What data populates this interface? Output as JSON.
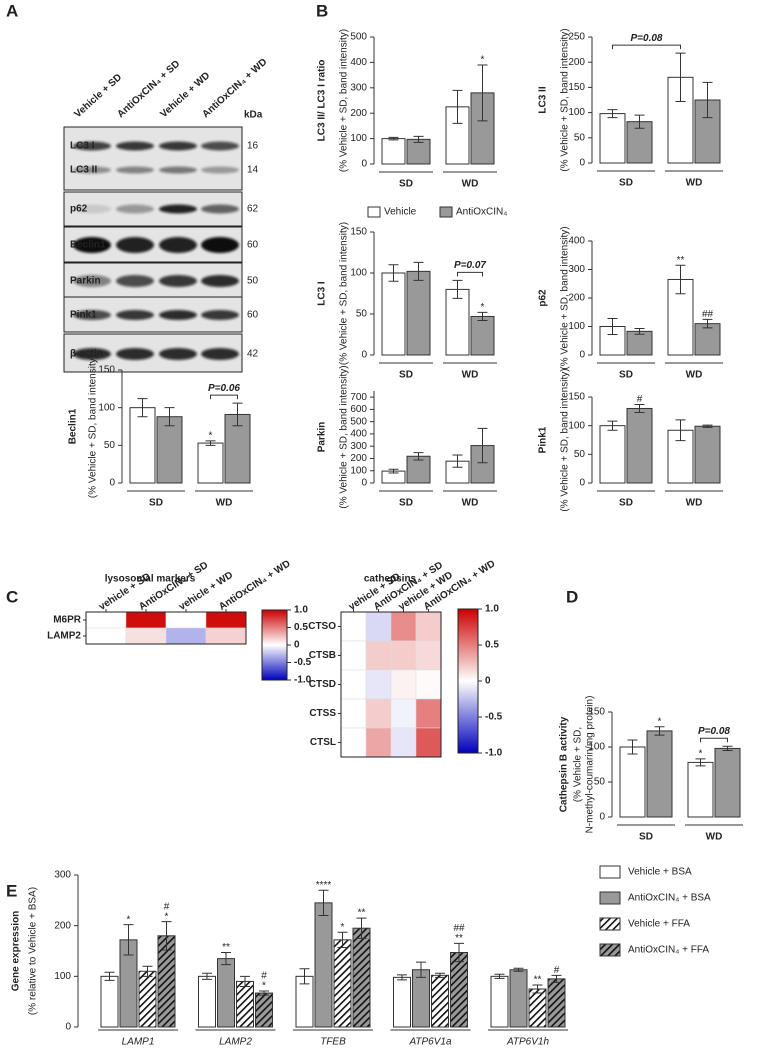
{
  "panel_labels": [
    "A",
    "B",
    "C",
    "D",
    "E"
  ],
  "blot": {
    "lanes": [
      "Vehicle + SD",
      "AntiOxCIN₄ + SD",
      "Vehicle + WD",
      "AntiOxCIN₄ + WD"
    ],
    "unit": "kDa",
    "rows": [
      {
        "name": "LC3 I",
        "kda": 16
      },
      {
        "name": "LC3 II",
        "kda": 14
      },
      {
        "name": "p62",
        "kda": 62
      },
      {
        "name": "Beclin1",
        "kda": 60
      },
      {
        "name": "Parkin",
        "kda": 50
      },
      {
        "name": "Pink1",
        "kda": 60
      },
      {
        "name": "β-actin",
        "kda": 42
      }
    ]
  },
  "chart_data": [
    {
      "type": "bar",
      "ylabel": "LC3 II/ LC3 I ratio",
      "ylabel_sub": [
        "(% Vehicle + SD, band intensity)"
      ],
      "categories": [
        "SD",
        "WD"
      ],
      "series": [
        {
          "color": "#ffffff",
          "values": [
            100,
            225
          ],
          "errors": [
            5,
            65
          ]
        },
        {
          "color": "#999999",
          "values": [
            97,
            280
          ],
          "errors": [
            12,
            110
          ],
          "annotations": [
            null,
            [
              "*"
            ]
          ]
        }
      ],
      "ylim": [
        0,
        500
      ],
      "yticks": [
        0,
        100,
        200,
        300,
        400,
        500
      ]
    },
    {
      "type": "bar",
      "ylabel": "LC3 II",
      "ylabel_sub": [
        "(% Vehicle + SD, band intensity)"
      ],
      "categories": [
        "SD",
        "WD"
      ],
      "series": [
        {
          "color": "#ffffff",
          "values": [
            98,
            170
          ],
          "errors": [
            8,
            48
          ]
        },
        {
          "color": "#999999",
          "values": [
            82,
            125
          ],
          "errors": [
            13,
            35
          ]
        }
      ],
      "ylim": [
        0,
        250
      ],
      "yticks": [
        0,
        50,
        100,
        150,
        200,
        250
      ],
      "bracket_label": "P=0.08"
    },
    {
      "type": "bar",
      "ylabel": "LC3 I",
      "ylabel_sub": [
        "(% Vehicle + SD, band intensity)"
      ],
      "categories": [
        "SD",
        "WD"
      ],
      "legend": true,
      "series": [
        {
          "name": "Vehicle",
          "color": "#ffffff",
          "values": [
            100,
            80
          ],
          "errors": [
            10,
            11
          ]
        },
        {
          "name": "AntiOxCIN₄",
          "color": "#999999",
          "values": [
            102,
            47
          ],
          "errors": [
            11,
            5
          ],
          "annotations": [
            null,
            [
              "*"
            ]
          ]
        }
      ],
      "ylim": [
        0,
        150
      ],
      "yticks": [
        0,
        50,
        100,
        150
      ],
      "bracket_label": "P=0.07"
    },
    {
      "type": "bar",
      "ylabel": "p62",
      "ylabel_sub": [
        "(% Vehicle + SD, band intensity)"
      ],
      "categories": [
        "SD",
        "WD"
      ],
      "series": [
        {
          "color": "#ffffff",
          "values": [
            100,
            265
          ],
          "errors": [
            28,
            50
          ],
          "annotations": [
            null,
            [
              "**"
            ]
          ]
        },
        {
          "color": "#999999",
          "values": [
            83,
            110
          ],
          "errors": [
            10,
            15
          ],
          "annotations": [
            null,
            [
              "##"
            ]
          ]
        }
      ],
      "ylim": [
        0,
        400
      ],
      "yticks": [
        0,
        100,
        200,
        300,
        400
      ]
    },
    {
      "type": "bar",
      "ylabel": "Beclin1",
      "ylabel_sub": [
        "(% Vehicle + SD, band intensity)"
      ],
      "categories": [
        "SD",
        "WD"
      ],
      "series": [
        {
          "color": "#ffffff",
          "values": [
            100,
            53
          ],
          "errors": [
            12,
            3
          ],
          "annotations": [
            null,
            [
              "*"
            ]
          ]
        },
        {
          "color": "#999999",
          "values": [
            88,
            91
          ],
          "errors": [
            12,
            15
          ]
        }
      ],
      "ylim": [
        0,
        150
      ],
      "yticks": [
        0,
        50,
        100,
        150
      ],
      "bracket_label": "P=0.06"
    },
    {
      "type": "bar",
      "ylabel": "Parkin",
      "ylabel_sub": [
        "(% Vehicle + SD, band intensity)"
      ],
      "categories": [
        "SD",
        "WD"
      ],
      "series": [
        {
          "color": "#ffffff",
          "values": [
            97,
            178
          ],
          "errors": [
            15,
            50
          ]
        },
        {
          "color": "#999999",
          "values": [
            218,
            305
          ],
          "errors": [
            30,
            140
          ]
        }
      ],
      "ylim": [
        0,
        750
      ],
      "yticks": [
        0,
        100,
        200,
        300,
        400,
        500,
        600,
        700
      ]
    },
    {
      "type": "bar",
      "ylabel": "Pink1",
      "ylabel_sub": [
        "(% Vehicle + SD, band intensity)"
      ],
      "categories": [
        "SD",
        "WD"
      ],
      "series": [
        {
          "color": "#ffffff",
          "values": [
            100,
            92
          ],
          "errors": [
            8,
            18
          ]
        },
        {
          "color": "#999999",
          "values": [
            130,
            99
          ],
          "errors": [
            7,
            2
          ],
          "annotations": [
            [
              "#"
            ],
            null
          ]
        }
      ],
      "ylim": [
        0,
        150
      ],
      "yticks": [
        0,
        50,
        100,
        150
      ]
    },
    {
      "type": "heatmap",
      "title": "lysosomal markers",
      "columns": [
        "vehicle + SD",
        "AntiOxCIN₄ + SD",
        "vehicle + WD",
        "AntiOxCIN₄ + WD"
      ],
      "rows": [
        "M6PR",
        "LAMP2"
      ],
      "values": [
        [
          0,
          0.95,
          0,
          0.95
        ],
        [
          0,
          0.12,
          -0.3,
          0.18
        ]
      ],
      "zlim": [
        -1,
        1
      ],
      "zticks": [
        {
          "value": 1,
          "label": "1.0"
        },
        0.5,
        0,
        -0.5,
        {
          "value": -1,
          "label": "-1.0"
        }
      ]
    },
    {
      "type": "heatmap",
      "title": "cathepsins",
      "columns": [
        "vehicle + SD",
        "AntiOxCIN₄ + SD",
        "vehicle + WD",
        "AntiOxCIN₄ + WD"
      ],
      "rows": [
        "CTSO",
        "CTSB",
        "CTSD",
        "CTSS",
        "CTSL"
      ],
      "values": [
        [
          0,
          -0.15,
          0.45,
          0.2
        ],
        [
          0,
          0.2,
          0.2,
          0.15
        ],
        [
          0,
          -0.1,
          0.05,
          0.02
        ],
        [
          0,
          0.2,
          -0.05,
          0.5
        ],
        [
          0,
          0.35,
          -0.1,
          0.65
        ]
      ],
      "zlim": [
        -1,
        1
      ],
      "zticks": [
        {
          "value": 1,
          "label": "1.0"
        },
        0.5,
        0,
        -0.5,
        {
          "value": -1,
          "label": "-1.0"
        }
      ]
    },
    {
      "type": "bar",
      "ylabel": "Cathepsin B activity",
      "ylabel_sub": [
        "(% Vehicle + SD,",
        "N-methyl-coumarin/mg protein)"
      ],
      "categories": [
        "SD",
        "WD"
      ],
      "series": [
        {
          "color": "#ffffff",
          "values": [
            100,
            78
          ],
          "errors": [
            10,
            5
          ],
          "annotations": [
            null,
            [
              "*"
            ]
          ]
        },
        {
          "color": "#999999",
          "values": [
            123,
            98
          ],
          "errors": [
            6,
            3
          ],
          "annotations": [
            [
              "*"
            ],
            null
          ]
        }
      ],
      "ylim": [
        0,
        150
      ],
      "yticks": [
        0,
        50,
        100,
        150
      ],
      "bracket_label": "P=0.08"
    },
    {
      "type": "bar",
      "ylabel": "Gene expression",
      "ylabel_sub": [
        "(% relative to Vehicle + BSA)"
      ],
      "categories": [
        "LAMP1",
        "LAMP2",
        "TFEB",
        "ATP6V1a",
        "ATP6V1h"
      ],
      "legend": true,
      "series": [
        {
          "name": "Vehicle + BSA",
          "color": "#ffffff",
          "values": [
            100,
            100,
            100,
            98,
            100
          ],
          "errors": [
            8,
            6,
            15,
            5,
            4
          ]
        },
        {
          "name": "AntiOxCIN₄ + BSA",
          "color": "#999999",
          "values": [
            172,
            135,
            245,
            113,
            113
          ],
          "errors": [
            30,
            12,
            25,
            15,
            3
          ],
          "annotations": [
            [
              "*"
            ],
            [
              "**"
            ],
            [
              "****"
            ],
            null,
            null
          ]
        },
        {
          "name": "Vehicle + FFA",
          "color": "#ffffff",
          "hatch": true,
          "values": [
            110,
            90,
            172,
            102,
            75
          ],
          "errors": [
            10,
            10,
            15,
            4,
            8
          ],
          "annotations": [
            null,
            null,
            [
              "*"
            ],
            null,
            [
              "**"
            ]
          ]
        },
        {
          "name": "AntiOxCIN₄ + FFA",
          "color": "#999999",
          "hatch": true,
          "values": [
            180,
            67,
            195,
            147,
            95
          ],
          "errors": [
            28,
            4,
            20,
            18,
            7
          ],
          "annotations": [
            [
              "#",
              "*"
            ],
            [
              "#",
              "*"
            ],
            [
              "**"
            ],
            [
              "##",
              "**"
            ],
            [
              "#"
            ]
          ]
        }
      ],
      "ylim": [
        0,
        300
      ],
      "yticks": [
        0,
        100,
        200,
        300
      ]
    }
  ]
}
